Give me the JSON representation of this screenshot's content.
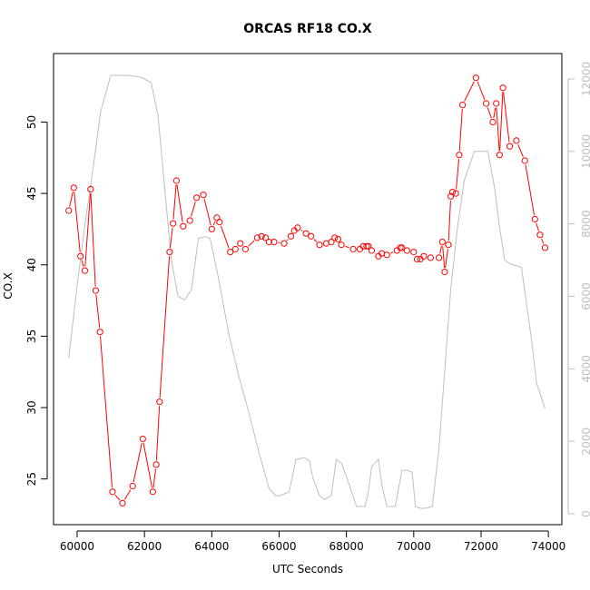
{
  "chart_data": {
    "type": "line",
    "title": "ORCAS RF18 CO.X",
    "xlabel": "UTC Seconds",
    "ylabel": "CO.X",
    "xlim": [
      59300,
      74400
    ],
    "ylim": [
      21.8,
      54.8
    ],
    "y2lim": [
      -300,
      12700
    ],
    "x_ticks": [
      60000,
      62000,
      64000,
      66000,
      68000,
      70000,
      72000,
      74000
    ],
    "y_ticks": [
      25,
      30,
      35,
      40,
      45,
      50
    ],
    "y2_ticks": [
      0,
      2000,
      4000,
      6000,
      8000,
      10000,
      12000
    ],
    "colors": {
      "co": "#ff0000",
      "altitude": "#bebebe",
      "axis": "#000000",
      "right_axis": "#bebebe"
    },
    "series": [
      {
        "axis": "left",
        "style": "line+points",
        "x": [
          59750,
          59900,
          60100,
          60230,
          60400,
          60550,
          60680,
          61050,
          61350,
          61650,
          61950,
          62250,
          62350,
          62450,
          62750,
          62850,
          62950,
          63150,
          63350,
          63550,
          63750,
          64000,
          64150,
          64230,
          64550,
          64700,
          64850,
          65000,
          65350,
          65480,
          65600,
          65700,
          65850,
          66150,
          66350,
          66450,
          66550,
          66800,
          66950,
          67200,
          67400,
          67550,
          67650,
          67750,
          67850,
          68200,
          68400,
          68500,
          68600,
          68650,
          68750,
          68950,
          69050,
          69200,
          69500,
          69600,
          69650,
          69800,
          70000,
          70100,
          70200,
          70300,
          70500,
          70750,
          70850,
          70920,
          71030,
          71100,
          71150,
          71250,
          71350,
          71450,
          71850,
          72150,
          72350,
          72450,
          72550,
          72650,
          72850,
          73050,
          73300,
          73600,
          73750,
          73900
        ],
        "values": [
          43.8,
          45.4,
          40.6,
          39.6,
          45.3,
          38.2,
          35.3,
          24.1,
          23.3,
          24.5,
          27.8,
          24.1,
          26.0,
          30.4,
          40.9,
          42.9,
          45.9,
          42.7,
          43.1,
          44.7,
          44.9,
          42.5,
          43.3,
          43.0,
          40.9,
          41.1,
          41.5,
          41.1,
          41.9,
          42.0,
          41.9,
          41.6,
          41.6,
          41.5,
          42.0,
          42.4,
          42.6,
          42.2,
          42.0,
          41.4,
          41.5,
          41.6,
          41.9,
          41.8,
          41.4,
          41.1,
          41.1,
          41.3,
          41.3,
          41.3,
          41.0,
          40.6,
          40.8,
          40.7,
          41.0,
          41.2,
          41.2,
          41.0,
          40.9,
          40.4,
          40.4,
          40.6,
          40.5,
          40.5,
          41.6,
          39.5,
          41.4,
          44.8,
          45.1,
          45.0,
          47.7,
          51.2,
          53.1,
          51.3,
          50.0,
          51.3,
          47.7,
          52.4,
          48.3,
          48.7,
          47.3,
          43.2,
          42.1,
          41.2
        ]
      },
      {
        "axis": "right",
        "style": "line",
        "x": [
          59750,
          60000,
          60250,
          60500,
          60700,
          61000,
          61500,
          61900,
          62200,
          62400,
          62600,
          62800,
          63000,
          63200,
          63400,
          63600,
          63800,
          63950,
          64200,
          64500,
          64800,
          65100,
          65400,
          65700,
          65900,
          66000,
          66300,
          66500,
          66750,
          66900,
          67000,
          67200,
          67350,
          67550,
          67700,
          67850,
          68050,
          68300,
          68550,
          68650,
          68750,
          68950,
          69050,
          69200,
          69450,
          69650,
          69800,
          69950,
          70050,
          70200,
          70350,
          70550,
          70750,
          70900,
          71100,
          71300,
          71500,
          71800,
          72000,
          72200,
          72400,
          72550,
          72700,
          72850,
          73200,
          73500,
          73650,
          73900
        ],
        "values": [
          4300,
          6300,
          8100,
          9700,
          11100,
          12100,
          12100,
          12050,
          11900,
          11000,
          9000,
          7000,
          6000,
          5900,
          6200,
          7600,
          7650,
          7600,
          6500,
          5000,
          3800,
          2800,
          1700,
          700,
          500,
          500,
          600,
          1500,
          1550,
          1450,
          1000,
          500,
          400,
          500,
          1500,
          1400,
          900,
          200,
          200,
          600,
          1300,
          1500,
          800,
          200,
          200,
          1200,
          1200,
          1150,
          200,
          150,
          150,
          200,
          1800,
          3700,
          6200,
          7900,
          9200,
          10000,
          10000,
          10000,
          9000,
          7900,
          7000,
          6900,
          6800,
          4800,
          3600,
          2900
        ]
      }
    ]
  }
}
